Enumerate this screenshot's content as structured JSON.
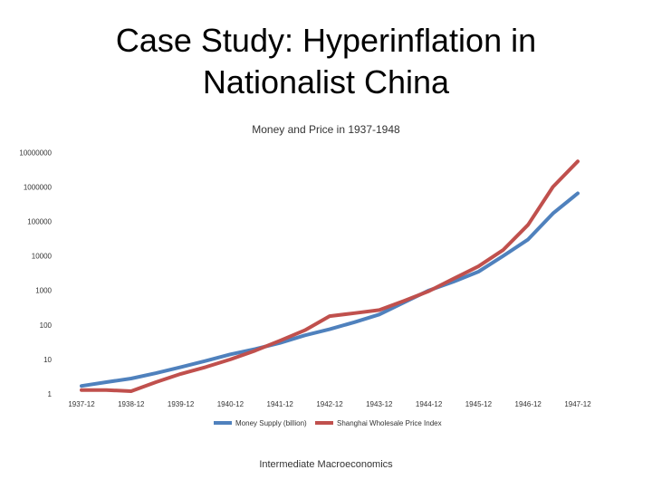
{
  "slide": {
    "title_line1": "Case Study: Hyperinflation in",
    "title_line2": "Nationalist China",
    "footer": "Intermediate Macroeconomics"
  },
  "chart_data": {
    "type": "line",
    "title": "Money and Price in 1937-1948",
    "y_scale": "log10",
    "ylim": [
      1,
      10000000
    ],
    "y_ticks": [
      "1",
      "10",
      "100",
      "1000",
      "10000",
      "100000",
      "1000000",
      "10000000"
    ],
    "categories": [
      "1937-12",
      "1938-12",
      "1939-12",
      "1940-12",
      "1941-12",
      "1942-12",
      "1943-12",
      "1944-12",
      "1945-12",
      "1946-12",
      "1947-12"
    ],
    "grid": false,
    "legend_position": "bottom",
    "series": [
      {
        "name": "Money Supply (billion)",
        "color": "#4F81BD",
        "x": [
          0,
          0.5,
          1,
          1.5,
          2,
          2.5,
          3,
          3.5,
          4,
          4.5,
          5,
          5.5,
          6,
          6.5,
          7,
          7.5,
          8,
          8.5,
          9,
          9.5,
          10,
          10.5
        ],
        "values": [
          1.7,
          2.2,
          2.8,
          4,
          6,
          9,
          14,
          20,
          30,
          50,
          75,
          120,
          200,
          450,
          1000,
          1800,
          3500,
          10000,
          30000,
          170000,
          650000,
          null
        ]
      },
      {
        "name": "Shanghai Wholesale Price Index",
        "color": "#C0504D",
        "x": [
          0,
          0.5,
          1,
          1.5,
          2,
          2.5,
          3,
          3.5,
          4,
          4.5,
          5,
          5.5,
          6,
          6.5,
          7,
          7.5,
          8,
          8.5,
          9,
          9.5,
          10,
          10.5
        ],
        "values": [
          1.3,
          1.3,
          1.2,
          2.2,
          3.8,
          6,
          10,
          18,
          35,
          70,
          180,
          220,
          270,
          500,
          950,
          2200,
          5000,
          15000,
          80000,
          1000000,
          5500000,
          null
        ]
      }
    ]
  }
}
